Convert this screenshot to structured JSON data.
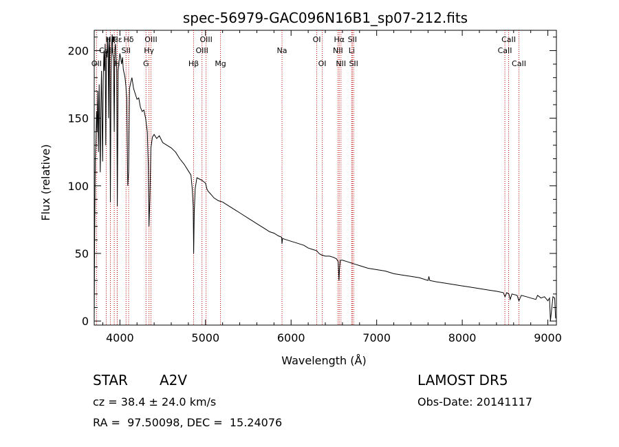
{
  "chart_data": {
    "type": "line",
    "title": "spec-56979-GAC096N16B1_sp07-212.fits",
    "xlabel": "Wavelength (Å)",
    "ylabel": "Flux (relative)",
    "xlim": [
      3700,
      9100
    ],
    "ylim": [
      -3,
      215
    ],
    "xticks": [
      4000,
      5000,
      6000,
      7000,
      8000,
      9000
    ],
    "yticks": [
      0,
      50,
      100,
      150,
      200
    ],
    "series": [
      {
        "points": [
          [
            3700,
            2
          ],
          [
            3705,
            60
          ],
          [
            3712,
            120
          ],
          [
            3720,
            132
          ],
          [
            3727,
            155
          ],
          [
            3734,
            140
          ],
          [
            3742,
            170
          ],
          [
            3750,
            125
          ],
          [
            3758,
            175
          ],
          [
            3765,
            140
          ],
          [
            3771,
            110
          ],
          [
            3778,
            160
          ],
          [
            3785,
            185
          ],
          [
            3792,
            150
          ],
          [
            3798,
            118
          ],
          [
            3805,
            178
          ],
          [
            3813,
            200
          ],
          [
            3820,
            185
          ],
          [
            3828,
            205
          ],
          [
            3835,
            130
          ],
          [
            3843,
            200
          ],
          [
            3850,
            195
          ],
          [
            3856,
            210
          ],
          [
            3862,
            200
          ],
          [
            3868,
            150
          ],
          [
            3875,
            210
          ],
          [
            3882,
            200
          ],
          [
            3889,
            88
          ],
          [
            3896,
            178
          ],
          [
            3903,
            203
          ],
          [
            3910,
            212
          ],
          [
            3918,
            197
          ],
          [
            3926,
            195
          ],
          [
            3934,
            140
          ],
          [
            3940,
            200
          ],
          [
            3948,
            205
          ],
          [
            3955,
            195
          ],
          [
            3962,
            190
          ],
          [
            3970,
            85
          ],
          [
            3980,
            185
          ],
          [
            3990,
            192
          ],
          [
            4000,
            198
          ],
          [
            4010,
            194
          ],
          [
            4020,
            190
          ],
          [
            4030,
            195
          ],
          [
            4040,
            186
          ],
          [
            4050,
            183
          ],
          [
            4060,
            180
          ],
          [
            4070,
            174
          ],
          [
            4080,
            165
          ],
          [
            4092,
            100
          ],
          [
            4102,
            110
          ],
          [
            4112,
            172
          ],
          [
            4125,
            176
          ],
          [
            4140,
            180
          ],
          [
            4160,
            172
          ],
          [
            4180,
            168
          ],
          [
            4200,
            164
          ],
          [
            4220,
            165
          ],
          [
            4240,
            158
          ],
          [
            4260,
            155
          ],
          [
            4280,
            156
          ],
          [
            4300,
            150
          ],
          [
            4320,
            140
          ],
          [
            4332,
            115
          ],
          [
            4340,
            70
          ],
          [
            4350,
            90
          ],
          [
            4362,
            128
          ],
          [
            4380,
            136
          ],
          [
            4400,
            138
          ],
          [
            4430,
            135
          ],
          [
            4460,
            137
          ],
          [
            4500,
            132
          ],
          [
            4550,
            130
          ],
          [
            4600,
            128
          ],
          [
            4650,
            125
          ],
          [
            4700,
            120
          ],
          [
            4750,
            116
          ],
          [
            4800,
            111
          ],
          [
            4830,
            108
          ],
          [
            4845,
            98
          ],
          [
            4856,
            85
          ],
          [
            4862,
            50
          ],
          [
            4868,
            80
          ],
          [
            4880,
            98
          ],
          [
            4900,
            106
          ],
          [
            4930,
            105
          ],
          [
            4960,
            104
          ],
          [
            5000,
            102
          ],
          [
            5015,
            98
          ],
          [
            5030,
            96
          ],
          [
            5060,
            94
          ],
          [
            5100,
            91
          ],
          [
            5150,
            89
          ],
          [
            5200,
            88
          ],
          [
            5250,
            86
          ],
          [
            5300,
            84
          ],
          [
            5350,
            82
          ],
          [
            5400,
            80
          ],
          [
            5450,
            78
          ],
          [
            5500,
            76
          ],
          [
            5550,
            74
          ],
          [
            5600,
            72
          ],
          [
            5650,
            70
          ],
          [
            5700,
            68
          ],
          [
            5750,
            66
          ],
          [
            5800,
            65
          ],
          [
            5850,
            63
          ],
          [
            5890,
            62
          ],
          [
            5894,
            57
          ],
          [
            5900,
            61
          ],
          [
            5950,
            60
          ],
          [
            6000,
            59
          ],
          [
            6050,
            58
          ],
          [
            6100,
            57
          ],
          [
            6150,
            56
          ],
          [
            6200,
            54
          ],
          [
            6250,
            53
          ],
          [
            6300,
            52
          ],
          [
            6325,
            50
          ],
          [
            6350,
            49
          ],
          [
            6400,
            48
          ],
          [
            6450,
            48
          ],
          [
            6500,
            47
          ],
          [
            6530,
            46
          ],
          [
            6550,
            44
          ],
          [
            6560,
            30
          ],
          [
            6565,
            38
          ],
          [
            6575,
            45
          ],
          [
            6600,
            45
          ],
          [
            6650,
            44
          ],
          [
            6700,
            43
          ],
          [
            6750,
            42
          ],
          [
            6800,
            41
          ],
          [
            6900,
            39
          ],
          [
            7000,
            38
          ],
          [
            7100,
            37
          ],
          [
            7200,
            35
          ],
          [
            7300,
            34
          ],
          [
            7400,
            33
          ],
          [
            7500,
            32
          ],
          [
            7600,
            30
          ],
          [
            7610,
            33
          ],
          [
            7620,
            30
          ],
          [
            7700,
            29
          ],
          [
            7800,
            28
          ],
          [
            7900,
            27
          ],
          [
            8000,
            26
          ],
          [
            8100,
            25
          ],
          [
            8200,
            24
          ],
          [
            8300,
            23
          ],
          [
            8400,
            22
          ],
          [
            8480,
            21
          ],
          [
            8500,
            18
          ],
          [
            8520,
            21
          ],
          [
            8545,
            20
          ],
          [
            8560,
            16
          ],
          [
            8580,
            20
          ],
          [
            8640,
            19
          ],
          [
            8662,
            15
          ],
          [
            8690,
            19
          ],
          [
            8750,
            18
          ],
          [
            8800,
            17
          ],
          [
            8860,
            16
          ],
          [
            8880,
            19
          ],
          [
            8920,
            17
          ],
          [
            8960,
            18
          ],
          [
            9000,
            15
          ],
          [
            9020,
            17
          ],
          [
            9030,
            0
          ],
          [
            9060,
            18
          ],
          [
            9080,
            17
          ],
          [
            9090,
            2
          ]
        ]
      }
    ],
    "line_labels": [
      {
        "text": "Hα",
        "x": 6563,
        "row": 0
      },
      {
        "text": "Hβ",
        "x": 4861,
        "row": 2
      },
      {
        "text": "Hγ",
        "x": 4340,
        "row": 1
      },
      {
        "text": "Hδ",
        "x": 4102,
        "row": 0
      },
      {
        "text": "Hε",
        "x": 3970,
        "row": 0
      },
      {
        "text": "Hζ",
        "x": 3889,
        "row": 0
      },
      {
        "text": "H",
        "x": 3968,
        "row": 2
      },
      {
        "text": "K",
        "x": 3934,
        "row": 0
      },
      {
        "text": "G",
        "x": 4305,
        "row": 2
      },
      {
        "text": "Mg",
        "x": 5175,
        "row": 2
      },
      {
        "text": "Na",
        "x": 5894,
        "row": 1
      },
      {
        "text": "OII",
        "x": 3727,
        "row": 2
      },
      {
        "text": "OIII",
        "x": 4363,
        "row": 0
      },
      {
        "text": "OIII",
        "x": 4959,
        "row": 1
      },
      {
        "text": "OIII",
        "x": 5007,
        "row": 0
      },
      {
        "text": "OI",
        "x": 6300,
        "row": 0
      },
      {
        "text": "OI",
        "x": 6364,
        "row": 2
      },
      {
        "text": "NII",
        "x": 6548,
        "row": 1
      },
      {
        "text": "NII",
        "x": 6583,
        "row": 2
      },
      {
        "text": "SII",
        "x": 4072,
        "row": 1
      },
      {
        "text": "SII",
        "x": 6716,
        "row": 0
      },
      {
        "text": "SII",
        "x": 6731,
        "row": 2
      },
      {
        "text": "Li",
        "x": 6708,
        "row": 1
      },
      {
        "text": "CaII",
        "x": 8498,
        "row": 1
      },
      {
        "text": "CaII",
        "x": 8542,
        "row": 0
      },
      {
        "text": "CaII",
        "x": 8662,
        "row": 2
      },
      {
        "text": "CaII",
        "x": 3840,
        "row": 1
      }
    ]
  },
  "annotations": {
    "class_label": "STAR",
    "subclass": "A2V",
    "survey": "LAMOST DR5",
    "cz": "cz = 38.4 ± 24.0 km/s",
    "obs_date": "Obs-Date: 20141117",
    "coords": "RA =  97.50098, DEC =  15.24076"
  },
  "colors": {
    "line": "#000000",
    "marker": "#c00000",
    "background": "#ffffff"
  }
}
